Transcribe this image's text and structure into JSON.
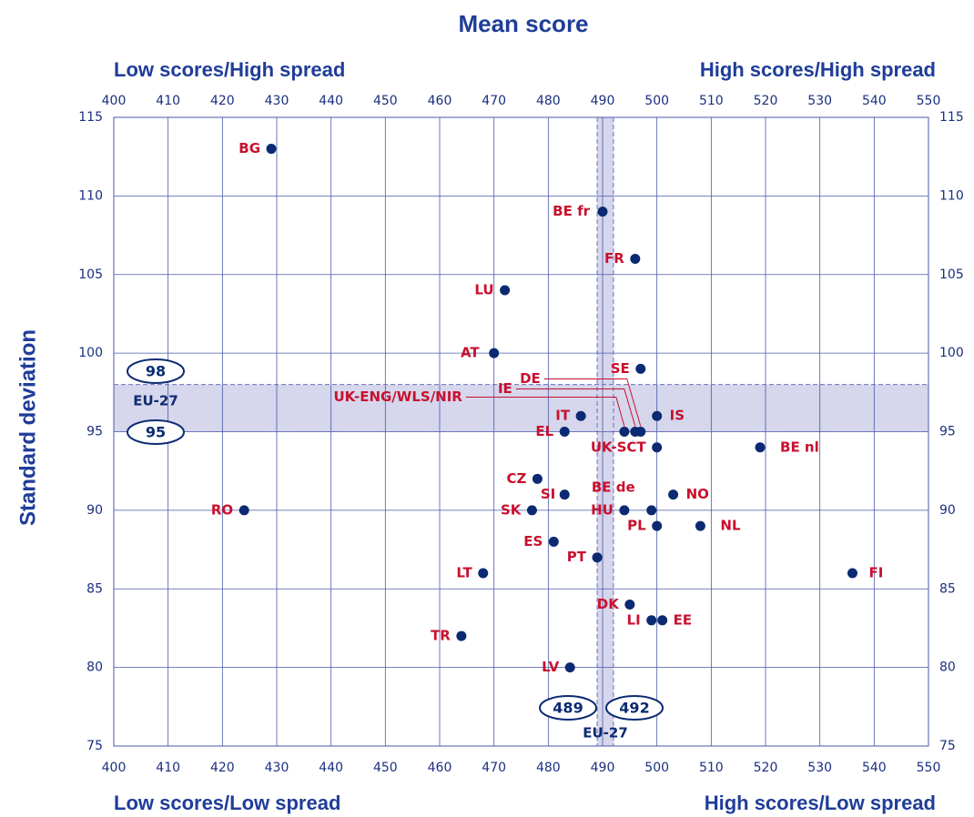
{
  "chart_data": {
    "type": "scatter",
    "title": "Mean score",
    "y_label": "Standard deviation",
    "corner_labels": {
      "top_left": "Low scores/High spread",
      "top_right": "High scores/High spread",
      "bottom_left": "Low scores/Low spread",
      "bottom_right": "High scores/Low spread"
    },
    "point_labels": [
      "BG",
      "BE fr",
      "FR",
      "LU",
      "AT",
      "SE",
      "IS",
      "DE",
      "IE",
      "UK-ENG/WLS/NIR",
      "IT",
      "EL",
      "UK-SCT",
      "BE nl",
      "CZ",
      "SI",
      "NO",
      "BE de",
      "HU",
      "SK",
      "RO",
      "PL",
      "NL",
      "ES",
      "PT",
      "LT",
      "FI",
      "DK",
      "LI",
      "EE",
      "TR",
      "LV"
    ],
    "x": [
      429,
      490,
      496,
      472,
      470,
      497,
      500,
      497,
      496,
      494,
      486,
      483,
      500,
      519,
      478,
      483,
      503,
      499,
      494,
      477,
      424,
      500,
      508,
      481,
      489,
      468,
      536,
      495,
      499,
      501,
      464,
      484
    ],
    "values": [
      113,
      109,
      106,
      104,
      100,
      99,
      96,
      95,
      95,
      95,
      96,
      95,
      94,
      94,
      92,
      91,
      91,
      90,
      90,
      90,
      90,
      89,
      89,
      88,
      87,
      86,
      86,
      84,
      83,
      83,
      82,
      80
    ],
    "color": "#0b2a72",
    "label_color": "#c8102e",
    "xlim": [
      400,
      550
    ],
    "ylim": [
      75,
      115
    ],
    "xticks": [
      400,
      410,
      420,
      430,
      440,
      450,
      460,
      470,
      480,
      490,
      500,
      510,
      520,
      530,
      540,
      550
    ],
    "yticks": [
      75,
      80,
      85,
      90,
      95,
      100,
      105,
      110,
      115
    ],
    "grid": true,
    "reference": {
      "label": "EU-27",
      "x_band": [
        489,
        492
      ],
      "y_band": [
        95,
        98
      ],
      "band_color": "#d6d6ec"
    }
  }
}
